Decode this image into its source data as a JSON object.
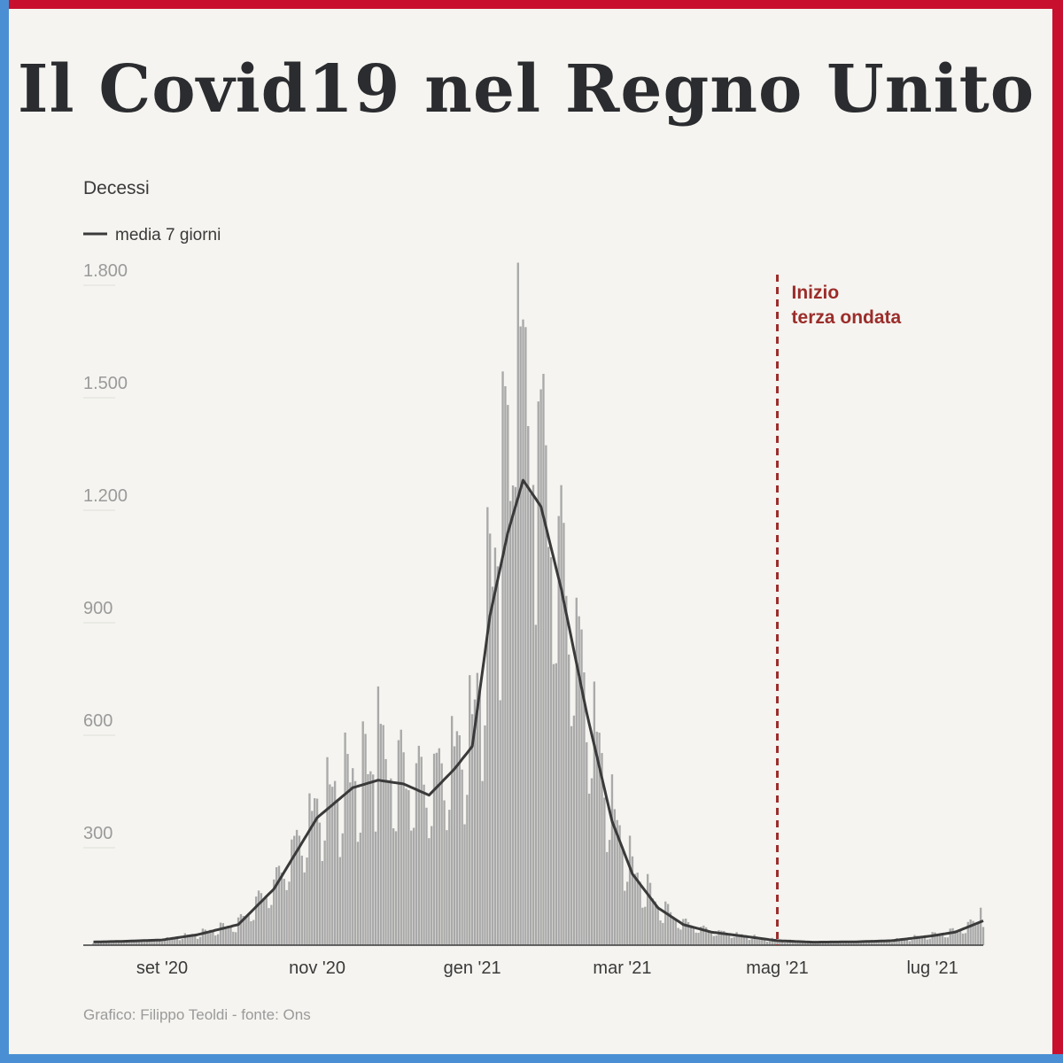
{
  "header": {
    "title": "Il Covid19 nel Regno Unito"
  },
  "footer": {
    "source": "Grafico: Filippo Teoldi - fonte: Ons"
  },
  "colors": {
    "frame_red": "#c8102e",
    "frame_blue": "#4a8fd4",
    "bars": "#a9a9a9",
    "line": "#3a3a3a",
    "annotation": "#9b2d2a",
    "background": "#f5f4f0"
  },
  "chart_data": {
    "type": "bar",
    "ylabel": "Decessi",
    "legend": {
      "line_label": "media 7 giorni",
      "placement": "top-left"
    },
    "ylim": [
      0,
      1800
    ],
    "yticks": [
      300,
      600,
      900,
      1200,
      1500,
      1800
    ],
    "ytick_labels": [
      "300",
      "600",
      "900",
      "1.200",
      "1.500",
      "1.800"
    ],
    "x_start": "2020-08-01",
    "x_end": "2021-07-21",
    "xticks": [
      {
        "date": "2020-09-01",
        "label": "set '20"
      },
      {
        "date": "2020-11-01",
        "label": "nov '20"
      },
      {
        "date": "2021-01-01",
        "label": "gen '21"
      },
      {
        "date": "2021-03-01",
        "label": "mar '21"
      },
      {
        "date": "2021-05-01",
        "label": "mag '21"
      },
      {
        "date": "2021-07-01",
        "label": "lug '21"
      }
    ],
    "annotation": {
      "date": "2021-05-01",
      "label_lines": [
        "Inizio",
        "terza ondata"
      ]
    },
    "series": [
      {
        "type": "line",
        "name": "media 7 giorni",
        "points": [
          [
            "2020-08-01",
            8
          ],
          [
            "2020-08-15",
            10
          ],
          [
            "2020-09-01",
            14
          ],
          [
            "2020-09-15",
            28
          ],
          [
            "2020-10-01",
            55
          ],
          [
            "2020-10-15",
            150
          ],
          [
            "2020-11-01",
            340
          ],
          [
            "2020-11-15",
            420
          ],
          [
            "2020-11-25",
            440
          ],
          [
            "2020-12-05",
            430
          ],
          [
            "2020-12-15",
            400
          ],
          [
            "2020-12-25",
            470
          ],
          [
            "2021-01-01",
            530
          ],
          [
            "2021-01-08",
            880
          ],
          [
            "2021-01-15",
            1100
          ],
          [
            "2021-01-21",
            1240
          ],
          [
            "2021-01-28",
            1170
          ],
          [
            "2021-02-05",
            950
          ],
          [
            "2021-02-15",
            620
          ],
          [
            "2021-02-25",
            330
          ],
          [
            "2021-03-05",
            190
          ],
          [
            "2021-03-15",
            100
          ],
          [
            "2021-03-25",
            55
          ],
          [
            "2021-04-05",
            35
          ],
          [
            "2021-04-20",
            22
          ],
          [
            "2021-05-01",
            12
          ],
          [
            "2021-05-15",
            8
          ],
          [
            "2021-06-01",
            9
          ],
          [
            "2021-06-15",
            12
          ],
          [
            "2021-07-01",
            25
          ],
          [
            "2021-07-10",
            35
          ],
          [
            "2021-07-21",
            65
          ]
        ]
      },
      {
        "type": "bar",
        "name": "daily",
        "note_peaks": [
          [
            "2020-11-25",
            690
          ],
          [
            "2021-01-13",
            1530
          ],
          [
            "2021-01-19",
            1820
          ],
          [
            "2021-01-20",
            1650
          ],
          [
            "2021-01-27",
            1450
          ],
          [
            "2021-07-20",
            100
          ]
        ]
      }
    ]
  }
}
